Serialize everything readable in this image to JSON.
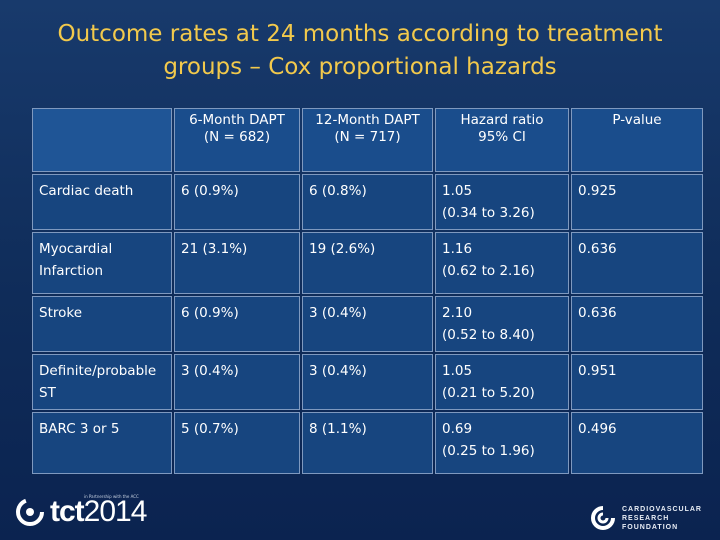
{
  "title": {
    "line1": "Outcome rates at 24 months according to treatment",
    "line2": "groups – Cox proportional hazards"
  },
  "table": {
    "headers": [
      {
        "line1": "",
        "line2": ""
      },
      {
        "line1": "6-Month DAPT",
        "line2": "(N = 682)"
      },
      {
        "line1": "12-Month DAPT",
        "line2": "(N = 717)"
      },
      {
        "line1": "Hazard ratio",
        "line2": "95% CI"
      },
      {
        "line1": "P-value",
        "line2": ""
      }
    ],
    "rows": [
      {
        "label": "Cardiac death",
        "six": "6 (0.9%)",
        "twelve": "6 (0.8%)",
        "hr": "1.05",
        "ci": "(0.34 to 3.26)",
        "p": "0.925"
      },
      {
        "label": "Myocardial Infarction",
        "six": "21 (3.1%)",
        "twelve": "19 (2.6%)",
        "hr": "1.16",
        "ci": "(0.62 to 2.16)",
        "p": "0.636"
      },
      {
        "label": "Stroke",
        "six": "6 (0.9%)",
        "twelve": "3 (0.4%)",
        "hr": "2.10",
        "ci": "(0.52 to 8.40)",
        "p": "0.636"
      },
      {
        "label": "Definite/probable ST",
        "six": "3 (0.4%)",
        "twelve": "3 (0.4%)",
        "hr": "1.05",
        "ci": "(0.21 to 5.20)",
        "p": "0.951"
      },
      {
        "label": "BARC 3 or 5",
        "six": "5 (0.7%)",
        "twelve": "8 (1.1%)",
        "hr": "0.69",
        "ci": "(0.25 to 1.96)",
        "p": "0.496"
      }
    ]
  },
  "footer": {
    "tct_logo": "tct2014",
    "tct_logo_prefix": "tct",
    "tct_logo_year": "2014",
    "partner_text": "in Partnership with the ACC",
    "crf_line1": "CARDIOVASCULAR",
    "crf_line2": "RESEARCH",
    "crf_line3": "FOUNDATION"
  },
  "colors": {
    "background": "#13346a",
    "title": "#f2c94c",
    "cell": "#17457f",
    "border": "#7f99bf"
  }
}
